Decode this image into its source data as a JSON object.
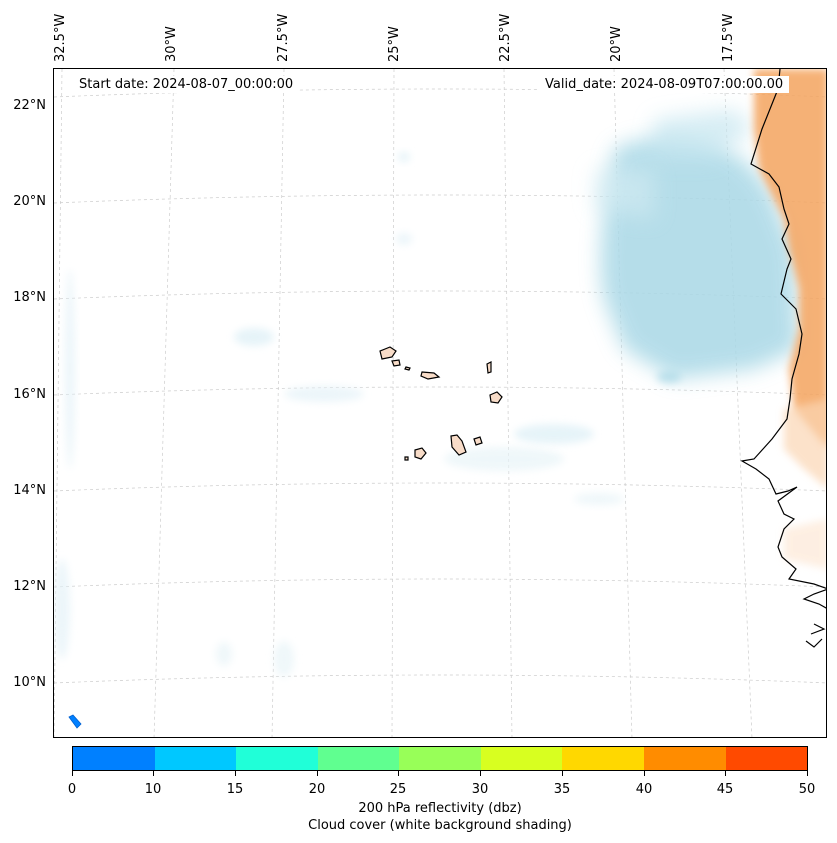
{
  "map": {
    "start_date_text": "Start date: 2024-08-07_00:00:00",
    "valid_date_text": "Valid_date: 2024-08-09T07:00:00.00",
    "longitude_labels": [
      "32.5°W",
      "30°W",
      "27.5°W",
      "25°W",
      "22.5°W",
      "20°W",
      "17.5°W"
    ],
    "latitude_labels": [
      "22°N",
      "20°N",
      "18°N",
      "16°N",
      "14°N",
      "12°N",
      "10°N"
    ],
    "region": "Cape Verde Islands and West African coast"
  },
  "colorbar": {
    "ticks": [
      "0",
      "10",
      "15",
      "20",
      "25",
      "30",
      "35",
      "40",
      "45",
      "50"
    ],
    "colors": [
      "#0080ff",
      "#00c8ff",
      "#20ffd8",
      "#60ff90",
      "#98ff58",
      "#d8ff20",
      "#ffd800",
      "#ff8c00",
      "#ff4a00"
    ],
    "label": "200 hPa reflectivity (dbz)",
    "sublabel": "Cloud cover (white background shading)"
  },
  "colors": {
    "cloud_blue": "#a9d8e6",
    "land_orange": "#f4a45e",
    "island_fill": "#f8dcc8",
    "grid": "#cccccc"
  }
}
